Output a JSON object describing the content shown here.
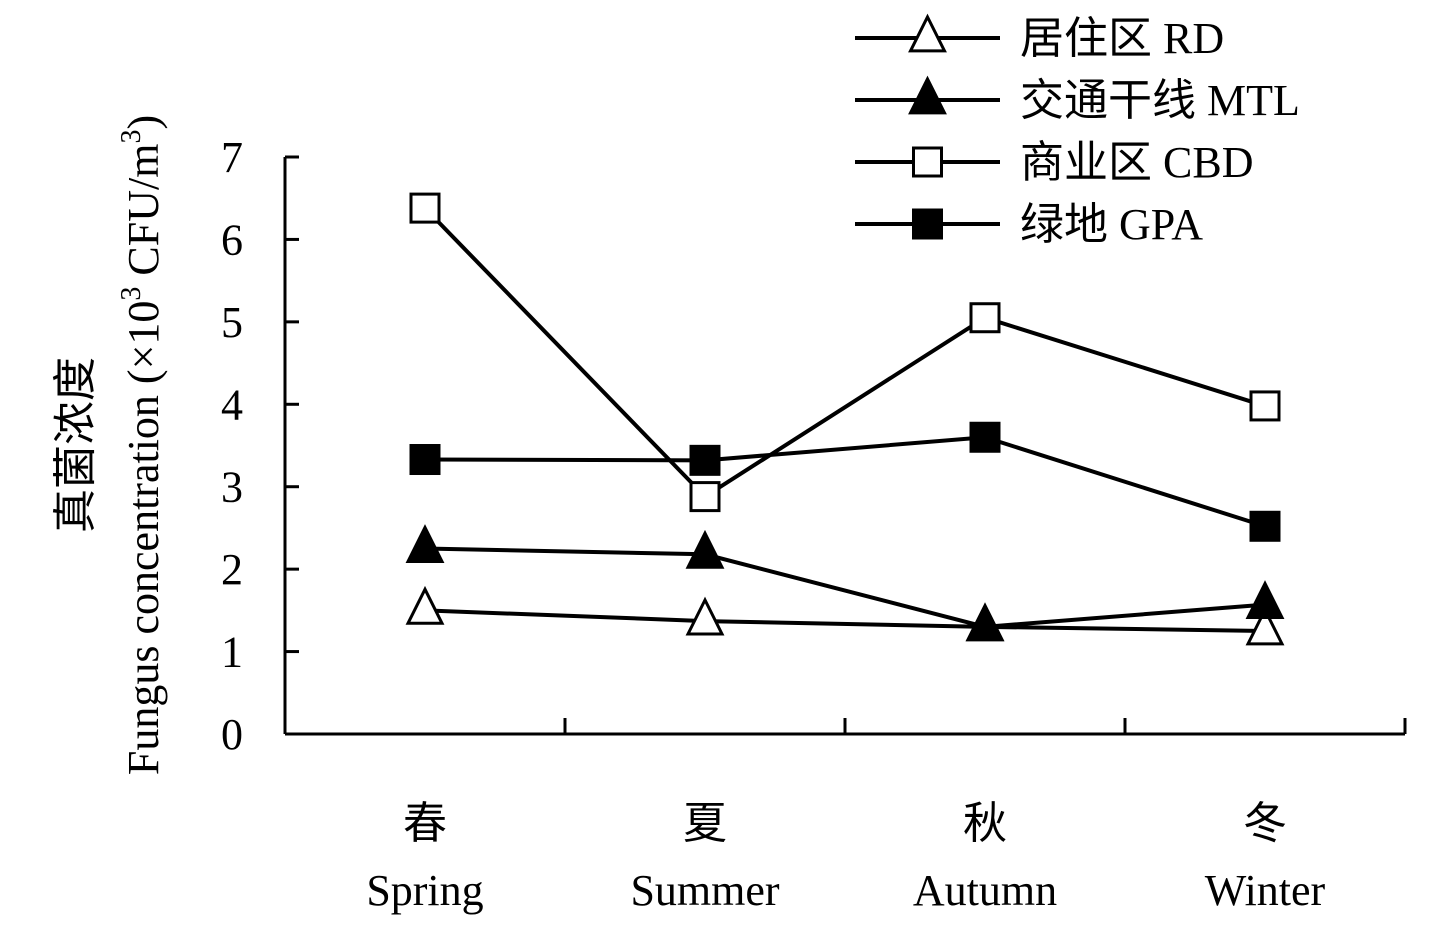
{
  "chart_data": {
    "type": "line",
    "categories": [
      {
        "zh": "春",
        "en": "Spring"
      },
      {
        "zh": "夏",
        "en": "Summer"
      },
      {
        "zh": "秋",
        "en": "Autumn"
      },
      {
        "zh": "冬",
        "en": "Winter"
      }
    ],
    "ylabel": {
      "zh": "真菌浓度",
      "en_main": "Fungus concentration (×10",
      "en_sup": "3",
      "en_tail": " CFU/m",
      "en_sup2": "3",
      "en_close": ")"
    },
    "ylim": [
      0,
      7
    ],
    "yticks": [
      "0",
      "1",
      "2",
      "3",
      "4",
      "5",
      "6",
      "7"
    ],
    "grid": false,
    "legend_position": "top-right",
    "series": [
      {
        "name": "居住区 RD",
        "marker": "triangle-open",
        "values": [
          1.5,
          1.37,
          1.3,
          1.25
        ]
      },
      {
        "name": "交通干线 MTL",
        "marker": "triangle-filled",
        "values": [
          2.25,
          2.18,
          1.3,
          1.57
        ]
      },
      {
        "name": "商业区 CBD",
        "marker": "square-open",
        "values": [
          6.38,
          2.88,
          5.05,
          3.98
        ]
      },
      {
        "name": "绿地 GPA",
        "marker": "square-filled",
        "values": [
          3.33,
          3.32,
          3.6,
          2.52
        ]
      }
    ]
  }
}
